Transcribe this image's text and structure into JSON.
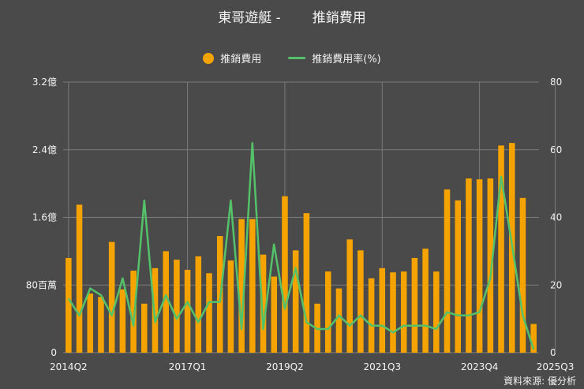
{
  "title": {
    "company": "東哥遊艇 -",
    "metric": "推銷費用"
  },
  "source": "資料來源: 優分析",
  "colors": {
    "bar": "#f5a300",
    "line": "#55c26a",
    "grid": "#7a7a7a",
    "text": "#f2f2f2",
    "background": "#4a4a4a"
  },
  "legend": [
    {
      "label": "推銷費用",
      "marker": "circle",
      "color": "#f5a300"
    },
    {
      "label": "推銷費用率(%)",
      "marker": "line",
      "color": "#55c26a"
    }
  ],
  "chart_data": {
    "type": "bar+line",
    "left_axis": {
      "ticks": [
        {
          "value": 0,
          "label": "0"
        },
        {
          "value": 80,
          "label": "80百萬"
        },
        {
          "value": 160,
          "label": "1.6億"
        },
        {
          "value": 240,
          "label": "2.4億"
        },
        {
          "value": 320,
          "label": "3.2億"
        }
      ],
      "range": [
        0,
        320
      ],
      "unit": "百萬"
    },
    "right_axis": {
      "ticks": [
        0,
        20,
        40,
        60,
        80
      ],
      "range": [
        0,
        80
      ]
    },
    "x_tick_labels": [
      "2014Q2",
      "2017Q1",
      "2019Q2",
      "2021Q3",
      "2023Q4",
      "2025Q3"
    ],
    "x_tick_positions": [
      0,
      11,
      20,
      29,
      38,
      45
    ],
    "grid": true,
    "legend_position": "top",
    "bar_values": [
      112,
      175,
      70,
      66,
      131,
      75,
      97,
      58,
      100,
      120,
      110,
      98,
      114,
      94,
      138,
      109,
      158,
      158,
      116,
      90,
      185,
      121,
      165,
      58,
      96,
      76,
      134,
      121,
      88,
      100,
      95,
      96,
      112,
      123,
      96,
      193,
      180,
      206,
      205,
      206,
      245,
      248,
      183,
      34
    ],
    "line_values": [
      16,
      11,
      19,
      17,
      11,
      22,
      8,
      45,
      9,
      17,
      10,
      15,
      9,
      15,
      15,
      45,
      7,
      62,
      7,
      32,
      13,
      25,
      9,
      7,
      7,
      11,
      8,
      11,
      8,
      8,
      6,
      8,
      8,
      8,
      7,
      12,
      11,
      11,
      12,
      22,
      52,
      32,
      11,
      1
    ]
  }
}
